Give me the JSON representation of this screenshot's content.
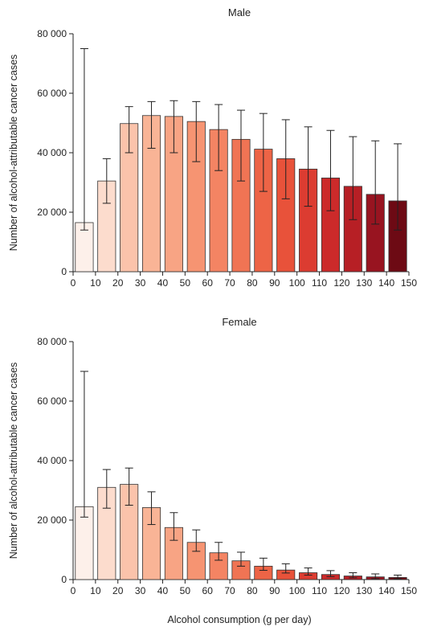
{
  "chart_data": [
    {
      "type": "bar",
      "title": "Male",
      "xlabel": "",
      "ylabel": "Number of alcohol-attributable cancer cases",
      "ylim": [
        0,
        80000
      ],
      "yticks": [
        "0",
        "20 000",
        "40 000",
        "60 000",
        "80 000"
      ],
      "xticks": [
        "0",
        "10",
        "20",
        "30",
        "40",
        "50",
        "60",
        "70",
        "80",
        "90",
        "100",
        "110",
        "120",
        "130",
        "140",
        "150"
      ],
      "x_range": [
        0,
        150
      ],
      "bin_width": 10,
      "x_centers": [
        5,
        15,
        25,
        35,
        45,
        55,
        65,
        75,
        85,
        95,
        105,
        115,
        125,
        135,
        145
      ],
      "values": [
        16500,
        30500,
        49800,
        52500,
        52200,
        50500,
        47800,
        44500,
        41200,
        38000,
        34500,
        31500,
        28700,
        26000,
        23800
      ],
      "err_low": [
        14000,
        23000,
        40000,
        41500,
        40000,
        37000,
        34000,
        30500,
        27000,
        24500,
        22000,
        20500,
        17500,
        16000,
        14000
      ],
      "err_high": [
        75000,
        38000,
        55500,
        57200,
        57500,
        57200,
        56200,
        54300,
        53200,
        51100,
        48700,
        47500,
        45400,
        44000,
        43000
      ],
      "bar_colors": [
        "#fdf0ea",
        "#fcdccd",
        "#fbc3ab",
        "#f9b496",
        "#f8a484",
        "#f69472",
        "#f48463",
        "#f07454",
        "#ed6446",
        "#e8523a",
        "#dc3c31",
        "#cc2a2a",
        "#b71f25",
        "#981420",
        "#6d0a14"
      ]
    },
    {
      "type": "bar",
      "title": "Female",
      "xlabel": "Alcohol consumption (g per day)",
      "ylabel": "Number of alcohol-attributable cancer cases",
      "ylim": [
        0,
        80000
      ],
      "yticks": [
        "0",
        "20 000",
        "40 000",
        "60 000",
        "80 000"
      ],
      "xticks": [
        "0",
        "10",
        "20",
        "30",
        "40",
        "50",
        "60",
        "70",
        "80",
        "90",
        "100",
        "110",
        "120",
        "130",
        "140",
        "150"
      ],
      "x_range": [
        0,
        150
      ],
      "bin_width": 10,
      "x_centers": [
        5,
        15,
        25,
        35,
        45,
        55,
        65,
        75,
        85,
        95,
        105,
        115,
        125,
        135,
        145
      ],
      "values": [
        24500,
        31000,
        32000,
        24200,
        17500,
        12500,
        9000,
        6300,
        4500,
        3200,
        2300,
        1700,
        1200,
        900,
        700
      ],
      "err_low": [
        21000,
        24000,
        25000,
        18500,
        13200,
        9500,
        6500,
        4500,
        3100,
        2200,
        1500,
        1000,
        600,
        300,
        200
      ],
      "err_high": [
        70000,
        37000,
        37500,
        29500,
        22500,
        16700,
        12500,
        9200,
        7200,
        5300,
        3900,
        3000,
        2300,
        1900,
        1500
      ],
      "bar_colors": [
        "#fdf0ea",
        "#fcdccd",
        "#fbc3ab",
        "#f9b496",
        "#f8a484",
        "#f69472",
        "#f48463",
        "#f07454",
        "#ed6446",
        "#e8523a",
        "#dc3c31",
        "#cc2a2a",
        "#b71f25",
        "#981420",
        "#6d0a14"
      ]
    }
  ]
}
